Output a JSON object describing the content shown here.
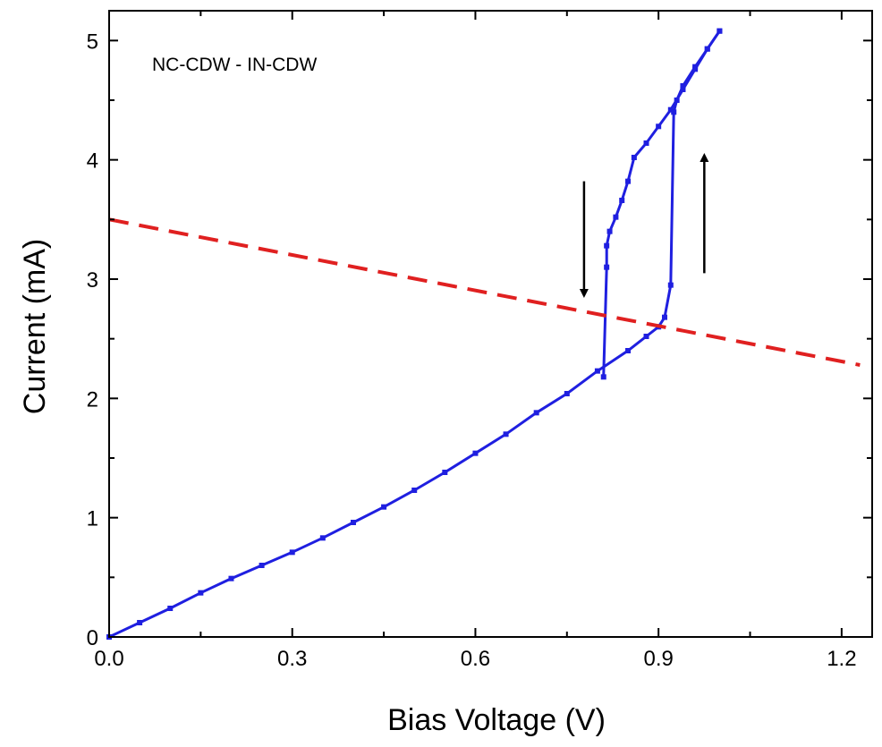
{
  "chart_data": {
    "type": "scatter",
    "title": "",
    "xlabel": "Bias Voltage (V)",
    "ylabel": "Current (mA)",
    "xlim": [
      0.0,
      1.25
    ],
    "ylim": [
      0.0,
      5.25
    ],
    "x_ticks": [
      "0.0",
      "0.3",
      "0.6",
      "0.9",
      "1.2"
    ],
    "x_tick_values": [
      0.0,
      0.3,
      0.6,
      0.9,
      1.2
    ],
    "y_ticks": [
      "0",
      "1",
      "2",
      "3",
      "4",
      "5"
    ],
    "y_tick_values": [
      0,
      1,
      2,
      3,
      4,
      5
    ],
    "grid": false,
    "annotation": "NC-CDW - IN-CDW",
    "colors": {
      "data": "#1f1fe0",
      "load_line": "#e02020",
      "arrow": "#000000"
    },
    "series": [
      {
        "style": "markers+line",
        "x": [
          0.0,
          0.05,
          0.1,
          0.15,
          0.2,
          0.25,
          0.3,
          0.35,
          0.4,
          0.45,
          0.5,
          0.55,
          0.6,
          0.65,
          0.7,
          0.75,
          0.8,
          0.85,
          0.88,
          0.9,
          0.91,
          0.92,
          0.925,
          0.93,
          0.94,
          0.96,
          0.98,
          1.0
        ],
        "y": [
          0.0,
          0.12,
          0.24,
          0.37,
          0.49,
          0.6,
          0.71,
          0.83,
          0.96,
          1.09,
          1.23,
          1.38,
          1.54,
          1.7,
          1.88,
          2.04,
          2.23,
          2.4,
          2.52,
          2.6,
          2.68,
          2.95,
          4.4,
          4.5,
          4.62,
          4.78,
          4.93,
          5.08
        ]
      },
      {
        "style": "markers+line",
        "x": [
          1.0,
          0.98,
          0.96,
          0.94,
          0.92,
          0.9,
          0.88,
          0.86,
          0.85,
          0.84,
          0.83,
          0.82,
          0.815,
          0.815,
          0.81
        ],
        "y": [
          5.08,
          4.93,
          4.76,
          4.59,
          4.42,
          4.28,
          4.14,
          4.02,
          3.82,
          3.66,
          3.52,
          3.4,
          3.28,
          3.1,
          2.18
        ]
      },
      {
        "style": "dashed",
        "x": [
          0.0,
          1.23
        ],
        "y": [
          3.5,
          2.28
        ]
      }
    ],
    "arrows": [
      {
        "direction": "down",
        "x": 0.778,
        "y_from": 3.82,
        "y_to": 2.88
      },
      {
        "direction": "up",
        "x": 0.975,
        "y_from": 3.05,
        "y_to": 4.02
      }
    ]
  }
}
